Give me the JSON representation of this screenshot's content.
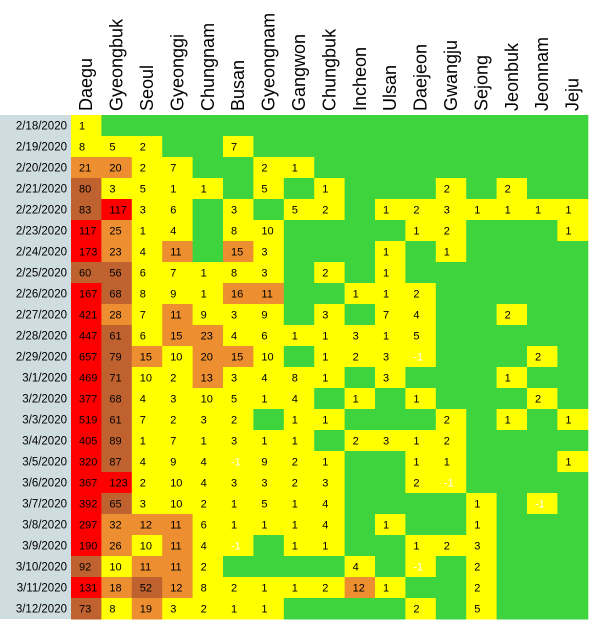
{
  "chart_data": {
    "type": "heatmap",
    "title": "",
    "columns": [
      "Daegu",
      "Gyeongbuk",
      "Seoul",
      "Gyeonggi",
      "Chungnam",
      "Busan",
      "Gyeongnam",
      "Gangwon",
      "Chungbuk",
      "Incheon",
      "Ulsan",
      "Daejeon",
      "Gwangju",
      "Sejong",
      "Jeonbuk",
      "Jeonnam",
      "Jeju"
    ],
    "rows": [
      "2/18/2020",
      "2/19/2020",
      "2/20/2020",
      "2/21/2020",
      "2/22/2020",
      "2/23/2020",
      "2/24/2020",
      "2/25/2020",
      "2/26/2020",
      "2/27/2020",
      "2/28/2020",
      "2/29/2020",
      "3/1/2020",
      "3/2/2020",
      "3/3/2020",
      "3/4/2020",
      "3/5/2020",
      "3/6/2020",
      "3/7/2020",
      "3/8/2020",
      "3/9/2020",
      "3/10/2020",
      "3/11/2020",
      "3/12/2020"
    ],
    "values": [
      [
        1,
        null,
        null,
        null,
        null,
        null,
        null,
        null,
        null,
        null,
        null,
        null,
        null,
        null,
        null,
        null,
        null
      ],
      [
        8,
        5,
        2,
        null,
        null,
        7,
        null,
        null,
        null,
        null,
        null,
        null,
        null,
        null,
        null,
        null,
        null
      ],
      [
        21,
        20,
        2,
        7,
        null,
        null,
        2,
        1,
        null,
        null,
        null,
        null,
        null,
        null,
        null,
        null,
        null
      ],
      [
        80,
        3,
        5,
        1,
        1,
        null,
        5,
        null,
        1,
        null,
        null,
        null,
        2,
        null,
        2,
        null,
        null
      ],
      [
        83,
        117,
        3,
        6,
        null,
        3,
        null,
        5,
        2,
        null,
        1,
        2,
        3,
        1,
        1,
        1,
        1
      ],
      [
        117,
        25,
        1,
        4,
        null,
        8,
        10,
        null,
        null,
        null,
        null,
        1,
        2,
        null,
        null,
        null,
        1
      ],
      [
        173,
        23,
        4,
        11,
        null,
        15,
        3,
        null,
        null,
        null,
        1,
        null,
        1,
        null,
        null,
        null,
        null
      ],
      [
        60,
        56,
        6,
        7,
        1,
        8,
        3,
        null,
        2,
        null,
        1,
        null,
        null,
        null,
        null,
        null,
        null
      ],
      [
        167,
        68,
        8,
        9,
        1,
        16,
        11,
        null,
        null,
        1,
        1,
        2,
        null,
        null,
        null,
        null,
        null
      ],
      [
        421,
        28,
        7,
        11,
        9,
        3,
        9,
        null,
        3,
        null,
        7,
        4,
        null,
        null,
        2,
        null,
        null
      ],
      [
        447,
        61,
        6,
        15,
        23,
        4,
        6,
        1,
        1,
        3,
        1,
        5,
        null,
        null,
        null,
        null,
        null
      ],
      [
        657,
        79,
        15,
        10,
        20,
        15,
        10,
        null,
        1,
        2,
        3,
        -1,
        null,
        null,
        null,
        2,
        null
      ],
      [
        469,
        71,
        10,
        2,
        13,
        3,
        4,
        8,
        1,
        null,
        3,
        null,
        null,
        null,
        1,
        null,
        null
      ],
      [
        377,
        68,
        4,
        3,
        10,
        5,
        1,
        4,
        null,
        1,
        null,
        1,
        null,
        null,
        null,
        2,
        null
      ],
      [
        519,
        61,
        7,
        2,
        3,
        2,
        null,
        1,
        1,
        null,
        null,
        null,
        2,
        null,
        1,
        null,
        1
      ],
      [
        405,
        89,
        1,
        7,
        1,
        3,
        1,
        1,
        null,
        2,
        3,
        1,
        2,
        null,
        null,
        null,
        null
      ],
      [
        320,
        87,
        4,
        9,
        4,
        -1,
        9,
        2,
        1,
        null,
        null,
        1,
        1,
        null,
        null,
        null,
        1
      ],
      [
        367,
        123,
        2,
        10,
        4,
        3,
        3,
        2,
        3,
        null,
        null,
        2,
        -1,
        null,
        null,
        null,
        null
      ],
      [
        392,
        65,
        3,
        10,
        2,
        1,
        5,
        1,
        4,
        null,
        null,
        null,
        null,
        1,
        null,
        -1,
        null
      ],
      [
        297,
        32,
        12,
        11,
        6,
        1,
        1,
        1,
        4,
        null,
        1,
        null,
        null,
        1,
        null,
        null,
        null
      ],
      [
        190,
        26,
        10,
        11,
        4,
        -1,
        null,
        1,
        1,
        null,
        null,
        1,
        2,
        3,
        null,
        null,
        null
      ],
      [
        92,
        10,
        11,
        11,
        2,
        null,
        null,
        null,
        null,
        4,
        null,
        -1,
        null,
        2,
        null,
        null,
        null
      ],
      [
        131,
        18,
        52,
        12,
        8,
        2,
        1,
        1,
        2,
        12,
        1,
        null,
        null,
        2,
        null,
        null,
        null
      ],
      [
        73,
        8,
        19,
        3,
        2,
        1,
        1,
        null,
        null,
        null,
        null,
        2,
        null,
        5,
        null,
        null,
        null
      ]
    ],
    "color_scale": {
      "empty": "#3ed43e",
      "low": "#ffff00",
      "mid": "#ed8f31",
      "high": "#c0622f",
      "top": "#ff0000",
      "row_label_bg": "#d0dde0"
    }
  }
}
